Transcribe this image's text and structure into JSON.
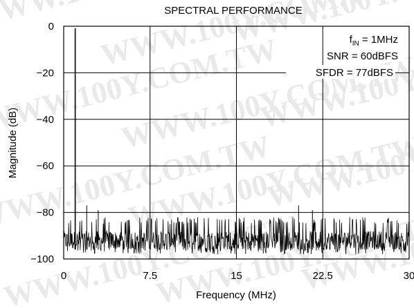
{
  "chart_data": {
    "type": "line",
    "title": "SPECTRAL PERFORMANCE",
    "xlabel": "Frequency (MHz)",
    "ylabel": "Magnitude (dB)",
    "xlim": [
      0,
      30
    ],
    "ylim": [
      -100,
      0
    ],
    "xticks": [
      0,
      7.5,
      15,
      22.5,
      30
    ],
    "xtick_labels": [
      "0",
      "7.5",
      "15",
      "22.5",
      "30"
    ],
    "yticks": [
      0,
      -20,
      -40,
      -60,
      -80,
      -100
    ],
    "ytick_labels": [
      "0",
      "−20",
      "−40",
      "−60",
      "−80",
      "−100"
    ],
    "grid": true,
    "annotations": {
      "fin_prefix": "f",
      "fin_sub": "IN",
      "fin_value": " = 1MHz",
      "snr": "SNR = 60dBFS",
      "sfdr": "SFDR = 77dBFS"
    },
    "series": [
      {
        "fundamental": {
          "x": 1.0,
          "y": 0
        },
        "spurs": [
          {
            "x": 1.0,
            "y": -80
          },
          {
            "x": 2.0,
            "y": -77
          },
          {
            "x": 3.0,
            "y": -79
          },
          {
            "x": 20.4,
            "y": -77
          },
          {
            "x": 21.6,
            "y": -79
          }
        ],
        "noise_floor_range": [
          -98,
          -82
        ]
      }
    ],
    "watermark": "WWW.100Y.COM.TW"
  }
}
